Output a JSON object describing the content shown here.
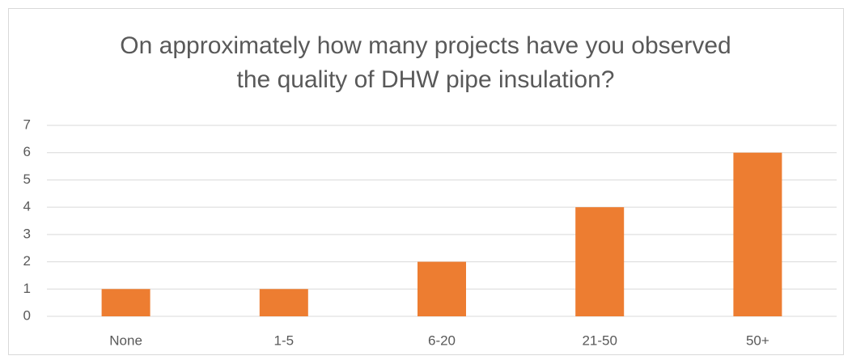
{
  "chart_data": {
    "type": "bar",
    "title": "On approximately how many projects have you observed the quality of DHW pipe insulation?",
    "categories": [
      "None",
      "1-5",
      "6-20",
      "21-50",
      "50+"
    ],
    "values": [
      1,
      1,
      2,
      4,
      6
    ],
    "color": "#ed7d31",
    "ylim": [
      0,
      7
    ],
    "yticks": [
      0,
      1,
      2,
      3,
      4,
      5,
      6,
      7
    ],
    "grid": true
  }
}
